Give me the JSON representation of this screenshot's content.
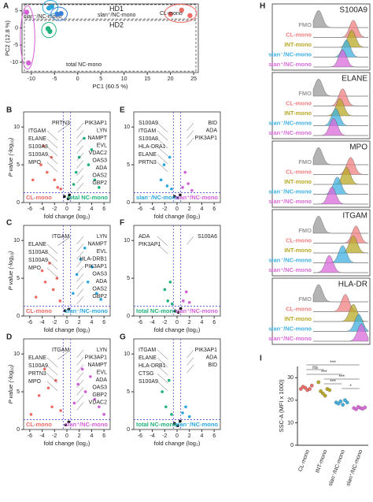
{
  "figure": {
    "panel_labels": [
      "A",
      "B",
      "C",
      "D",
      "E",
      "F",
      "G",
      "H",
      "I"
    ],
    "xlabel": "fold change (log₂)",
    "ylabel": "P value (-log₁₀)",
    "pca": {
      "xlabel": "PC1 (60.5 %)",
      "ylabel": "PC2 (12.8 %)",
      "xlim": [
        -12,
        26
      ],
      "ylim": [
        -13,
        7
      ],
      "xticks": [
        -10,
        -5,
        0,
        5,
        10,
        15,
        20,
        25
      ],
      "yticks": [
        -10,
        -5,
        0,
        5
      ],
      "regions": [
        {
          "label": "HD1",
          "ylim": [
            2.6,
            6.8
          ]
        },
        {
          "label": "HD2",
          "ylim": [
            -12.6,
            2.2
          ]
        }
      ],
      "groups": [
        {
          "name": "slan⁻/NC-mono",
          "color": "#29a7dc",
          "x": [
            -6.2,
            -5.6
          ],
          "y": [
            5.8,
            6.2
          ]
        },
        {
          "name": "slan⁺/NC-mono",
          "color": "#3a7fd8",
          "x": [
            -4.4,
            -3.6
          ],
          "y": [
            4.0,
            4.2
          ]
        },
        {
          "name": "total NC-mono",
          "color": "#1fb27a",
          "x": [
            -6.0,
            -6.4
          ],
          "y": [
            -1.0,
            -0.2
          ]
        },
        {
          "name": "CL-mono",
          "color": "#ef6b66",
          "x": [
            20.0,
            22.4,
            24.2
          ],
          "y": [
            4.0,
            5.2,
            3.6
          ]
        },
        {
          "name": "",
          "color": "#d35fd6",
          "x": [
            -11.0,
            -10.6
          ],
          "y": [
            4.6,
            -10.2
          ]
        }
      ]
    },
    "volcanos": [
      {
        "left_label": "CL-mono",
        "left_color": "#ef6b66",
        "right_label": "total NC-mono",
        "right_color": "#1fb27a",
        "xlim": [
          -7,
          7
        ],
        "ylim": [
          0,
          12
        ],
        "xticks": [
          -6,
          -4,
          -2,
          0,
          2,
          4,
          6
        ],
        "yticks": [
          0,
          5,
          10
        ],
        "fc": [
          -0.6,
          0.6
        ],
        "p": 1.3,
        "left_genes": [
          "PRTN3",
          "ITGAM",
          "ELANE",
          "S100A8",
          "S100A9",
          "MPO"
        ],
        "right_genes": [
          "PIK3AP1",
          "LYN",
          "NAMPT",
          "EVL",
          "VDAC2",
          "OAS3",
          "ADA",
          "OAS2",
          "GBP2"
        ],
        "x": [
          -5.5,
          -4.2,
          -3.8,
          -3.2,
          -2.5,
          -2.0,
          -1.5,
          -0.4,
          0.2,
          0.4,
          1.5,
          2.0,
          2.8,
          3.5,
          4.0,
          4.5,
          5.2,
          -1.0,
          1.1
        ],
        "y": [
          3.0,
          5.0,
          7.5,
          4.0,
          6.0,
          3.0,
          2.0,
          0.8,
          0.5,
          1.0,
          4.0,
          6.0,
          8.5,
          5.0,
          7.0,
          3.0,
          2.0,
          1.8,
          2.4
        ]
      },
      {
        "left_label": "CL-mono",
        "left_color": "#ef6b66",
        "right_label": "slan⁻/NC-mono",
        "right_color": "#29a7dc",
        "xlim": [
          -7,
          7
        ],
        "ylim": [
          0,
          12
        ],
        "xticks": [
          -6,
          -4,
          -2,
          0,
          2,
          4,
          6
        ],
        "yticks": [
          0,
          5,
          10
        ],
        "fc": [
          -0.6,
          0.6
        ],
        "p": 1.3,
        "left_genes": [
          "ITGAM",
          "ELANE",
          "S100A8",
          "S100A9",
          "MPO"
        ],
        "right_genes": [
          "LYN",
          "NAMPT",
          "EVL",
          "HLA-DRB1",
          "PIK3AP1",
          "OAS3",
          "ADA",
          "OAS2",
          "GBP2"
        ],
        "x": [
          -5.0,
          -4.0,
          -3.5,
          -2.8,
          -2.2,
          -1.6,
          -1.1,
          -0.3,
          0.3,
          1.0,
          1.6,
          2.2,
          2.9,
          3.4,
          4.1,
          4.8,
          5.5
        ],
        "y": [
          2.5,
          6.0,
          4.5,
          7.0,
          3.5,
          5.0,
          2.0,
          0.7,
          0.9,
          3.0,
          5.5,
          7.5,
          9.0,
          4.5,
          6.5,
          3.0,
          2.2
        ]
      },
      {
        "left_label": "CL-mono",
        "left_color": "#ef6b66",
        "right_label": "slan⁺/NC-mono",
        "right_color": "#d35fd6",
        "xlim": [
          -7,
          7
        ],
        "ylim": [
          0,
          12
        ],
        "xticks": [
          -6,
          -4,
          -2,
          0,
          2,
          4,
          6
        ],
        "yticks": [
          0,
          5,
          10
        ],
        "fc": [
          -0.6,
          0.6
        ],
        "p": 1.3,
        "left_genes": [
          "ITGAM",
          "ELANE",
          "S100A9",
          "PRTN3",
          "MPO"
        ],
        "right_genes": [
          "LYN",
          "PIK3AP1",
          "NAMPT",
          "EVL",
          "ADA",
          "OAS3",
          "GBP2",
          "VDAC2"
        ],
        "x": [
          -5.8,
          -4.5,
          -3.6,
          -3.0,
          -2.4,
          -1.8,
          -1.0,
          -0.2,
          0.3,
          1.2,
          1.8,
          2.5,
          3.0,
          3.8,
          4.5,
          5.2,
          6.0
        ],
        "y": [
          2.0,
          4.5,
          8.0,
          5.5,
          3.0,
          6.5,
          2.5,
          0.6,
          1.0,
          3.5,
          6.0,
          8.0,
          5.0,
          7.0,
          4.0,
          3.0,
          2.0
        ]
      },
      {
        "left_label": "slan⁻/NC-mono",
        "left_color": "#29a7dc",
        "right_label": "slan⁺/NC-mono",
        "right_color": "#d35fd6",
        "xlim": [
          -7,
          7
        ],
        "ylim": [
          0,
          12
        ],
        "xticks": [
          -6,
          -4,
          -2,
          0,
          2,
          4,
          6
        ],
        "yticks": [
          0,
          5,
          10
        ],
        "fc": [
          -0.6,
          0.6
        ],
        "p": 1.3,
        "left_genes": [
          "S100A9",
          "ITGAM",
          "S100A8",
          "HLA-DRA1",
          "ELANE",
          "PRTN3"
        ],
        "right_genes": [
          "BID",
          "ADA",
          "PIK3AP1"
        ],
        "x": [
          -2.6,
          -2.1,
          -1.6,
          -1.2,
          -0.9,
          -0.4,
          0.1,
          0.5,
          0.9,
          1.3,
          1.8,
          2.4
        ],
        "y": [
          3.0,
          5.0,
          2.2,
          6.0,
          1.8,
          0.8,
          0.6,
          1.0,
          2.0,
          4.0,
          2.5,
          1.6
        ]
      },
      {
        "left_label": "total NC-mono",
        "left_color": "#1fb27a",
        "right_label": "slan⁺/NC-mono",
        "right_color": "#d35fd6",
        "xlim": [
          -7,
          7
        ],
        "ylim": [
          0,
          12
        ],
        "xticks": [
          -6,
          -4,
          -2,
          0,
          2,
          4,
          6
        ],
        "yticks": [
          0,
          5,
          10
        ],
        "fc": [
          -0.6,
          0.6
        ],
        "p": 1.3,
        "left_genes": [
          "ADA",
          "PIK3AP1"
        ],
        "right_genes": [
          "S100A6"
        ],
        "x": [
          -2.0,
          -1.5,
          -1.1,
          -0.8,
          -0.3,
          0.2,
          0.6,
          1.0,
          1.5,
          2.0
        ],
        "y": [
          3.5,
          2.0,
          4.5,
          1.6,
          0.7,
          0.5,
          1.0,
          2.0,
          3.2,
          1.8
        ]
      },
      {
        "left_label": "total NC-mono",
        "left_color": "#1fb27a",
        "right_label": "slan⁻/NC-mono",
        "right_color": "#29a7dc",
        "xlim": [
          -7,
          7
        ],
        "ylim": [
          0,
          12
        ],
        "xticks": [
          -6,
          -4,
          -2,
          0,
          2,
          4,
          6
        ],
        "yticks": [
          0,
          5,
          10
        ],
        "fc": [
          -0.6,
          0.6
        ],
        "p": 1.3,
        "left_genes": [
          "ITGAM",
          "ELANE",
          "HLA-DRB1",
          "CTSG",
          "S100A9"
        ],
        "right_genes": [
          "PIK3AP1",
          "ADA",
          "BID"
        ],
        "x": [
          -2.4,
          -1.8,
          -1.3,
          -0.9,
          -0.4,
          0.1,
          0.5,
          0.9,
          1.4,
          2.0
        ],
        "y": [
          5.0,
          3.0,
          6.5,
          2.0,
          0.8,
          0.5,
          1.1,
          2.2,
          3.0,
          1.7
        ]
      }
    ],
    "histograms": {
      "labels": [
        "FMO",
        "CL-mono",
        "INT-mono",
        "slan⁻/NC-mono",
        "slan⁺/NC-mono"
      ],
      "colors": [
        "#9a9a9a",
        "#f08080",
        "#b9a827",
        "#3fb0e0",
        "#da6ad9"
      ],
      "markers": [
        {
          "name": "S100A9",
          "peaks": [
            0.1,
            0.75,
            0.72,
            0.62,
            0.55
          ]
        },
        {
          "name": "ELANE",
          "peaks": [
            0.1,
            0.55,
            0.5,
            0.42,
            0.38
          ]
        },
        {
          "name": "MPO",
          "peaks": [
            0.1,
            0.7,
            0.62,
            0.45,
            0.35
          ]
        },
        {
          "name": "ITGAM",
          "peaks": [
            0.1,
            0.8,
            0.75,
            0.55,
            0.3
          ]
        },
        {
          "name": "HLA-DR",
          "peaks": [
            0.1,
            0.6,
            0.75,
            0.85,
            0.9
          ]
        }
      ]
    },
    "ssc": {
      "ylabel": "SSC-A (MFI x 1000)",
      "categories": [
        "CL-mono",
        "INT-mono",
        "slan⁻/NC-mono",
        "slan⁺/NC-mono"
      ],
      "colors": [
        "#ef6b66",
        "#b9a827",
        "#3fb0e0",
        "#da6ad9"
      ],
      "ylim": [
        0,
        35
      ],
      "yticks": [
        0,
        10,
        20,
        30
      ],
      "values": [
        [
          25,
          26,
          25.5,
          24.5,
          25,
          26.5
        ],
        [
          28,
          24,
          23,
          22,
          25,
          24.5
        ],
        [
          19,
          18.5,
          19.5,
          18,
          20,
          19
        ],
        [
          16.5,
          16,
          17,
          16.5,
          16.2,
          16.8
        ]
      ],
      "significance": [
        {
          "pair": [
            0,
            3
          ],
          "label": "***"
        },
        {
          "pair": [
            0,
            1
          ],
          "label": "ns"
        },
        {
          "pair": [
            0,
            2
          ],
          "label": "***"
        },
        {
          "pair": [
            1,
            3
          ],
          "label": "***"
        },
        {
          "pair": [
            1,
            2
          ],
          "label": "***"
        },
        {
          "pair": [
            2,
            3
          ],
          "label": "*"
        }
      ]
    }
  }
}
